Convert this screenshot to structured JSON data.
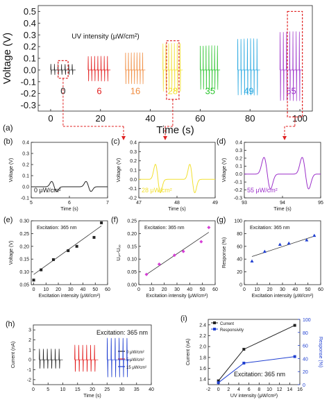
{
  "colors": {
    "c0": "#222222",
    "c6": "#e21a1a",
    "c16": "#f08a3c",
    "c28": "#f2e030",
    "c35": "#27c42a",
    "c49": "#28a8e0",
    "c55": "#9b2fc9",
    "marker_blue": "#1f3fd1",
    "marker_magenta": "#d63fd6",
    "link_red": "#e02020"
  },
  "chart_data": [
    {
      "id": "a",
      "type": "line",
      "panel_label": "(a)",
      "title": "UV intensity  (μW/cm²)",
      "xlabel": "Time (s)",
      "ylabel": "Voltage (V)",
      "xlim": [
        -5,
        105
      ],
      "ylim": [
        -0.35,
        0.55
      ],
      "xticks": [
        0,
        20,
        40,
        60,
        80,
        100
      ],
      "yticks": [
        -0.3,
        -0.2,
        -0.1,
        0.0,
        0.1,
        0.2,
        0.3,
        0.4,
        0.5
      ],
      "ytick_labels": [
        "-0.3",
        "-0.2",
        "-0.1",
        "0.0",
        "0.1",
        "0.2",
        "0.3",
        "0.4",
        "0.5"
      ],
      "series": [
        {
          "label": "0",
          "color": "c0",
          "t_start": 0,
          "t_end": 10,
          "amplitude": 0.05
        },
        {
          "label": "6",
          "color": "c6",
          "t_start": 15,
          "t_end": 24,
          "amplitude": 0.12
        },
        {
          "label": "16",
          "color": "c16",
          "t_start": 30,
          "t_end": 38,
          "amplitude": 0.15
        },
        {
          "label": "28",
          "color": "c28",
          "t_start": 45,
          "t_end": 53,
          "amplitude": 0.23
        },
        {
          "label": "35",
          "color": "c35",
          "t_start": 60,
          "t_end": 68,
          "amplitude": 0.21
        },
        {
          "label": "49",
          "color": "c49",
          "t_start": 75,
          "t_end": 84,
          "amplitude": 0.27
        },
        {
          "label": "55",
          "color": "c55",
          "t_start": 92,
          "t_end": 101,
          "amplitude": 0.33
        }
      ]
    },
    {
      "id": "b",
      "type": "line",
      "panel_label": "(b)",
      "annotation": "0 μW/cm²",
      "xlabel": "Time (s)",
      "ylabel": "Voltage (V)",
      "xlim": [
        5,
        7
      ],
      "ylim": [
        -0.1,
        0.4
      ],
      "xticks": [
        5,
        6,
        7
      ],
      "yticks": [
        -0.1,
        0.0,
        0.1,
        0.2,
        0.3,
        0.4
      ],
      "ytick_labels": [
        "-0.1",
        "0.0",
        "0.1",
        "0.2",
        "0.3",
        "0.4"
      ],
      "color": "c0",
      "peaks": [
        5.6,
        6.5
      ],
      "peak_amp": 0.05,
      "width": 0.1
    },
    {
      "id": "c",
      "type": "line",
      "panel_label": "(c)",
      "annotation": "28 μW/cm²",
      "xlabel": "Time (s)",
      "ylabel": "Voltage (V)",
      "xlim": [
        47,
        49
      ],
      "ylim": [
        -0.2,
        0.4
      ],
      "xticks": [
        47,
        48,
        49
      ],
      "yticks": [
        -0.2,
        -0.1,
        0.0,
        0.1,
        0.2,
        0.3,
        0.4
      ],
      "ytick_labels": [
        "-0.2",
        "-0.1",
        "0.0",
        "0.1",
        "0.2",
        "0.3",
        "0.4"
      ],
      "color": "c28",
      "peaks": [
        47.5,
        48.4
      ],
      "peak_amp": 0.17,
      "width": 0.1
    },
    {
      "id": "d",
      "type": "line",
      "panel_label": "(d)",
      "annotation": "55 μW/cm²",
      "xlabel": "Time (s)",
      "ylabel": "Voltage (V)",
      "xlim": [
        93,
        95
      ],
      "ylim": [
        -0.3,
        0.4
      ],
      "xticks": [
        93,
        94,
        95
      ],
      "yticks": [
        -0.3,
        -0.2,
        -0.1,
        0.0,
        0.1,
        0.2,
        0.3,
        0.4
      ],
      "ytick_labels": [
        "-0.3",
        "-0.2",
        "-0.1",
        "0.0",
        "0.1",
        "0.2",
        "0.3",
        "0.4"
      ],
      "color": "c55",
      "peaks": [
        93.6,
        94.6
      ],
      "peak_amp": 0.22,
      "width": 0.13
    },
    {
      "id": "e",
      "type": "scatter",
      "panel_label": "(e)",
      "annotation": "Excitation: 365 nm",
      "xlabel": "Excitation intensity (μW/cm²)",
      "ylabel": "Voltage (V)",
      "xlim": [
        -2,
        60
      ],
      "ylim": [
        0.05,
        0.3
      ],
      "xticks": [
        0,
        10,
        20,
        30,
        40,
        50,
        60
      ],
      "yticks": [
        0.05,
        0.1,
        0.15,
        0.2,
        0.25,
        0.3
      ],
      "ytick_labels": [
        "0.05",
        "0.10",
        "0.15",
        "0.20",
        "0.25",
        "0.30"
      ],
      "marker": "square",
      "marker_color": "c0",
      "x": [
        0,
        6,
        16,
        28,
        35,
        49,
        55
      ],
      "y": [
        0.068,
        0.108,
        0.148,
        0.183,
        0.2,
        0.235,
        0.292
      ],
      "fit": [
        [
          0,
          0.09
        ],
        [
          55,
          0.28
        ]
      ]
    },
    {
      "id": "f",
      "type": "scatter",
      "panel_label": "(f)",
      "annotation": "Excitation: 365 nm",
      "xlabel": "Excitation intensity (μW/cm²)",
      "ylabel": "Uₒₙ-Uₒₒ",
      "xlim": [
        0,
        60
      ],
      "ylim": [
        0.0,
        0.25
      ],
      "xticks": [
        0,
        10,
        20,
        30,
        40,
        50,
        60
      ],
      "yticks": [
        0.0,
        0.05,
        0.1,
        0.15,
        0.2,
        0.25
      ],
      "ytick_labels": [
        "0.00",
        "0.05",
        "0.10",
        "0.15",
        "0.20",
        "0.25"
      ],
      "marker": "diamond",
      "marker_color": "marker_magenta",
      "x": [
        6,
        16,
        28,
        35,
        49,
        55
      ],
      "y": [
        0.04,
        0.08,
        0.115,
        0.13,
        0.168,
        0.224
      ],
      "fit": [
        [
          6,
          0.04
        ],
        [
          55,
          0.205
        ]
      ]
    },
    {
      "id": "g",
      "type": "scatter",
      "panel_label": "(g)",
      "annotation": "Excitation: 365 nm",
      "xlabel": "Excitation intensity (μW/cm²)",
      "ylabel": "Response (%)",
      "xlim": [
        0,
        60
      ],
      "ylim": [
        0,
        100
      ],
      "xticks": [
        0,
        10,
        20,
        30,
        40,
        50,
        60
      ],
      "yticks": [
        0,
        20,
        40,
        60,
        80,
        100
      ],
      "ytick_labels": [
        "0",
        "20",
        "40",
        "60",
        "80",
        "100"
      ],
      "marker": "triangle",
      "marker_color": "marker_blue",
      "x": [
        6,
        16,
        28,
        35,
        49,
        55
      ],
      "y": [
        37,
        52,
        63,
        65,
        70,
        77
      ],
      "fit": [
        [
          6,
          44
        ],
        [
          55,
          76
        ]
      ]
    },
    {
      "id": "h",
      "type": "line",
      "panel_label": "(h)",
      "annotation": "Excitation: 365 nm",
      "xlabel": "Time (s)",
      "ylabel": "Current (nA)",
      "xlim": [
        0,
        40
      ],
      "ylim": [
        -2.5,
        3.5
      ],
      "xticks": [
        0,
        5,
        10,
        15,
        20,
        25,
        30,
        35,
        40
      ],
      "yticks": [
        -2,
        -1,
        0,
        1,
        2,
        3
      ],
      "ytick_labels": [
        "-2",
        "-1",
        "0",
        "1",
        "2",
        "3"
      ],
      "series": [
        {
          "name": "0 μW/cm²",
          "color": "c0",
          "t_start": 2,
          "t_end": 10,
          "amplitude": 1.1
        },
        {
          "name": "5 μW/cm²",
          "color": "c6",
          "t_start": 14,
          "t_end": 22,
          "amplitude": 1.5
        },
        {
          "name": "15 μW/cm²",
          "color": "marker_blue",
          "t_start": 25,
          "t_end": 33,
          "amplitude": 2.2
        }
      ]
    },
    {
      "id": "i",
      "type": "line",
      "panel_label": "(i)",
      "annotation": "Excitation: 365 nm",
      "xlabel": "UV intensity (μW/cm²)",
      "ylabel": "Current (nA)",
      "ylabel_right": "Response (%)",
      "xlim": [
        -2,
        16
      ],
      "ylim": [
        1.3,
        2.5
      ],
      "ylim_right": [
        0,
        100
      ],
      "xticks": [
        -2,
        0,
        2,
        4,
        6,
        8,
        10,
        12,
        14,
        16
      ],
      "yticks": [
        1.4,
        1.6,
        1.8,
        2.0,
        2.2,
        2.4
      ],
      "ytick_labels": [
        "1.4",
        "1.6",
        "1.8",
        "2.0",
        "2.2",
        "2.4"
      ],
      "yticks_right": [
        0,
        20,
        40,
        60,
        80,
        100
      ],
      "series": [
        {
          "name": "Current",
          "axis": "left",
          "color": "c0",
          "marker": "square",
          "x": [
            0,
            5,
            15
          ],
          "y": [
            1.37,
            1.95,
            2.39
          ]
        },
        {
          "name": "Responsivity",
          "axis": "right",
          "color": "marker_blue",
          "marker": "square",
          "x": [
            0,
            5,
            15
          ],
          "y": [
            3,
            33,
            43
          ]
        }
      ]
    }
  ]
}
